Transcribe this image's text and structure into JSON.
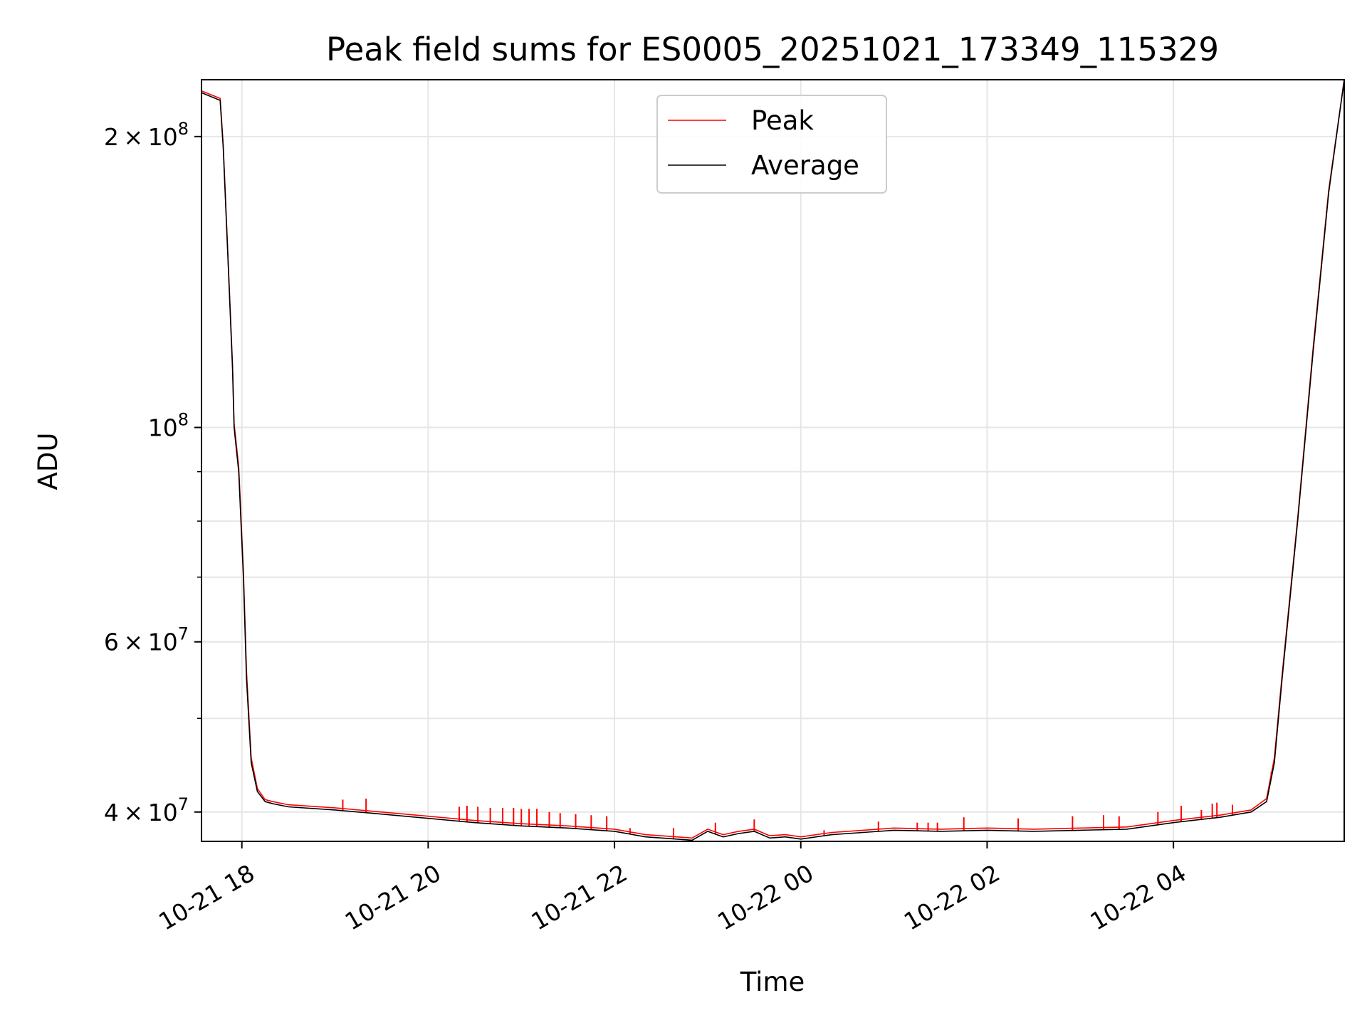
{
  "chart_data": {
    "type": "line",
    "title": "Peak field sums for ES0005_20251021_173349_115329",
    "xlabel": "Time",
    "ylabel": "ADU",
    "y_scale": "log",
    "ylim": [
      37300000,
      229000000
    ],
    "xlim": [
      "2025-10-21 17:34",
      "2025-10-22 05:50"
    ],
    "grid": true,
    "legend_position": "upper center",
    "x_ticks": [
      {
        "value": "2025-10-21 18:00",
        "label": "10-21 18"
      },
      {
        "value": "2025-10-21 20:00",
        "label": "10-21 20"
      },
      {
        "value": "2025-10-21 22:00",
        "label": "10-21 22"
      },
      {
        "value": "2025-10-22 00:00",
        "label": "10-22 00"
      },
      {
        "value": "2025-10-22 02:00",
        "label": "10-22 02"
      },
      {
        "value": "2025-10-22 04:00",
        "label": "10-22 04"
      }
    ],
    "y_ticks": [
      {
        "value": 40000000,
        "base": "4",
        "exp": "7"
      },
      {
        "value": 60000000,
        "base": "6",
        "exp": "7"
      },
      {
        "value": 100000000,
        "base": "",
        "exp": "8"
      },
      {
        "value": 200000000,
        "base": "2",
        "exp": "8"
      }
    ],
    "y_minor_ticks": [
      50000000,
      70000000,
      80000000,
      90000000
    ],
    "series": [
      {
        "name": "Average",
        "color": "#000000",
        "x": [
          "2025-10-21 17:34",
          "2025-10-21 17:46",
          "2025-10-21 17:48",
          "2025-10-21 17:51",
          "2025-10-21 17:54",
          "2025-10-21 17:55",
          "2025-10-21 17:58",
          "2025-10-21 18:01",
          "2025-10-21 18:03",
          "2025-10-21 18:06",
          "2025-10-21 18:10",
          "2025-10-21 18:15",
          "2025-10-21 18:20",
          "2025-10-21 18:30",
          "2025-10-21 19:00",
          "2025-10-21 19:30",
          "2025-10-21 20:00",
          "2025-10-21 20:30",
          "2025-10-21 21:00",
          "2025-10-21 21:30",
          "2025-10-21 22:00",
          "2025-10-21 22:20",
          "2025-10-21 22:40",
          "2025-10-21 22:50",
          "2025-10-21 23:00",
          "2025-10-21 23:10",
          "2025-10-21 23:20",
          "2025-10-21 23:30",
          "2025-10-21 23:40",
          "2025-10-21 23:50",
          "2025-10-22 00:00",
          "2025-10-22 00:20",
          "2025-10-22 00:40",
          "2025-10-22 01:00",
          "2025-10-22 01:30",
          "2025-10-22 02:00",
          "2025-10-22 02:30",
          "2025-10-22 03:00",
          "2025-10-22 03:30",
          "2025-10-22 04:00",
          "2025-10-22 04:30",
          "2025-10-22 04:50",
          "2025-10-22 05:00",
          "2025-10-22 05:05",
          "2025-10-22 05:10",
          "2025-10-22 05:20",
          "2025-10-22 05:30",
          "2025-10-22 05:40",
          "2025-10-22 05:50"
        ],
        "y": [
          222000000,
          218000000,
          195000000,
          150000000,
          115000000,
          100000000,
          90000000,
          70000000,
          55000000,
          45000000,
          42000000,
          41000000,
          40800000,
          40500000,
          40200000,
          39800000,
          39400000,
          39000000,
          38700000,
          38500000,
          38200000,
          37700000,
          37500000,
          37400000,
          38200000,
          37700000,
          38000000,
          38200000,
          37600000,
          37700000,
          37500000,
          37900000,
          38100000,
          38300000,
          38200000,
          38300000,
          38200000,
          38300000,
          38400000,
          39000000,
          39500000,
          40000000,
          41000000,
          45000000,
          55000000,
          80000000,
          120000000,
          175000000,
          229000000
        ]
      },
      {
        "name": "Peak",
        "color": "#ff0000",
        "x": [
          "2025-10-21 17:34",
          "2025-10-21 17:46",
          "2025-10-21 17:48",
          "2025-10-21 17:51",
          "2025-10-21 17:54",
          "2025-10-21 17:55",
          "2025-10-21 17:58",
          "2025-10-21 18:01",
          "2025-10-21 18:03",
          "2025-10-21 18:06",
          "2025-10-21 18:10",
          "2025-10-21 18:15",
          "2025-10-21 18:20",
          "2025-10-21 18:30",
          "2025-10-21 19:00",
          "2025-10-21 19:30",
          "2025-10-21 20:00",
          "2025-10-21 20:30",
          "2025-10-21 21:00",
          "2025-10-21 21:30",
          "2025-10-21 22:00",
          "2025-10-21 22:20",
          "2025-10-21 22:40",
          "2025-10-21 22:50",
          "2025-10-21 23:00",
          "2025-10-21 23:10",
          "2025-10-21 23:20",
          "2025-10-21 23:30",
          "2025-10-21 23:40",
          "2025-10-21 23:50",
          "2025-10-22 00:00",
          "2025-10-22 00:20",
          "2025-10-22 00:40",
          "2025-10-22 01:00",
          "2025-10-22 01:30",
          "2025-10-22 02:00",
          "2025-10-22 02:30",
          "2025-10-22 03:00",
          "2025-10-22 03:30",
          "2025-10-22 04:00",
          "2025-10-22 04:30",
          "2025-10-22 04:50",
          "2025-10-22 05:00",
          "2025-10-22 05:05",
          "2025-10-22 05:10",
          "2025-10-22 05:20",
          "2025-10-22 05:30",
          "2025-10-22 05:40",
          "2025-10-22 05:50"
        ],
        "y": [
          223000000,
          219000000,
          196000000,
          151000000,
          116000000,
          101000000,
          91000000,
          71000000,
          56000000,
          45500000,
          42300000,
          41200000,
          41000000,
          40700000,
          40400000,
          40000000,
          39600000,
          39200000,
          38900000,
          38700000,
          38400000,
          37900000,
          37700000,
          37600000,
          38400000,
          37900000,
          38200000,
          38400000,
          37800000,
          37900000,
          37700000,
          38100000,
          38300000,
          38500000,
          38400000,
          38500000,
          38400000,
          38500000,
          38600000,
          39200000,
          39700000,
          40200000,
          41300000,
          45500000,
          55500000,
          80500000,
          121000000,
          176000000,
          229000000
        ],
        "spikes": [
          {
            "x": "2025-10-21 19:05",
            "y": 41200000
          },
          {
            "x": "2025-10-21 19:20",
            "y": 41300000
          },
          {
            "x": "2025-10-21 20:20",
            "y": 40500000
          },
          {
            "x": "2025-10-21 20:25",
            "y": 40600000
          },
          {
            "x": "2025-10-21 20:32",
            "y": 40500000
          },
          {
            "x": "2025-10-21 20:40",
            "y": 40400000
          },
          {
            "x": "2025-10-21 20:48",
            "y": 40400000
          },
          {
            "x": "2025-10-21 20:55",
            "y": 40400000
          },
          {
            "x": "2025-10-21 21:00",
            "y": 40300000
          },
          {
            "x": "2025-10-21 21:05",
            "y": 40300000
          },
          {
            "x": "2025-10-21 21:10",
            "y": 40300000
          },
          {
            "x": "2025-10-21 21:18",
            "y": 40000000
          },
          {
            "x": "2025-10-21 21:25",
            "y": 39900000
          },
          {
            "x": "2025-10-21 21:35",
            "y": 39800000
          },
          {
            "x": "2025-10-21 21:45",
            "y": 39700000
          },
          {
            "x": "2025-10-21 21:55",
            "y": 39600000
          },
          {
            "x": "2025-10-21 22:10",
            "y": 38500000
          },
          {
            "x": "2025-10-21 22:38",
            "y": 38500000
          },
          {
            "x": "2025-10-21 23:05",
            "y": 39000000
          },
          {
            "x": "2025-10-21 23:30",
            "y": 39300000
          },
          {
            "x": "2025-10-22 00:15",
            "y": 38300000
          },
          {
            "x": "2025-10-22 00:50",
            "y": 39100000
          },
          {
            "x": "2025-10-22 01:15",
            "y": 39000000
          },
          {
            "x": "2025-10-22 01:22",
            "y": 39000000
          },
          {
            "x": "2025-10-22 01:28",
            "y": 39000000
          },
          {
            "x": "2025-10-22 01:45",
            "y": 39500000
          },
          {
            "x": "2025-10-22 02:20",
            "y": 39400000
          },
          {
            "x": "2025-10-22 02:55",
            "y": 39600000
          },
          {
            "x": "2025-10-22 03:15",
            "y": 39700000
          },
          {
            "x": "2025-10-22 03:25",
            "y": 39600000
          },
          {
            "x": "2025-10-22 03:50",
            "y": 40000000
          },
          {
            "x": "2025-10-22 04:05",
            "y": 40600000
          },
          {
            "x": "2025-10-22 04:18",
            "y": 40200000
          },
          {
            "x": "2025-10-22 04:25",
            "y": 40800000
          },
          {
            "x": "2025-10-22 04:28",
            "y": 40900000
          },
          {
            "x": "2025-10-22 04:38",
            "y": 40700000
          },
          {
            "x": "2025-10-22 05:03",
            "y": 44000000
          }
        ]
      }
    ]
  }
}
